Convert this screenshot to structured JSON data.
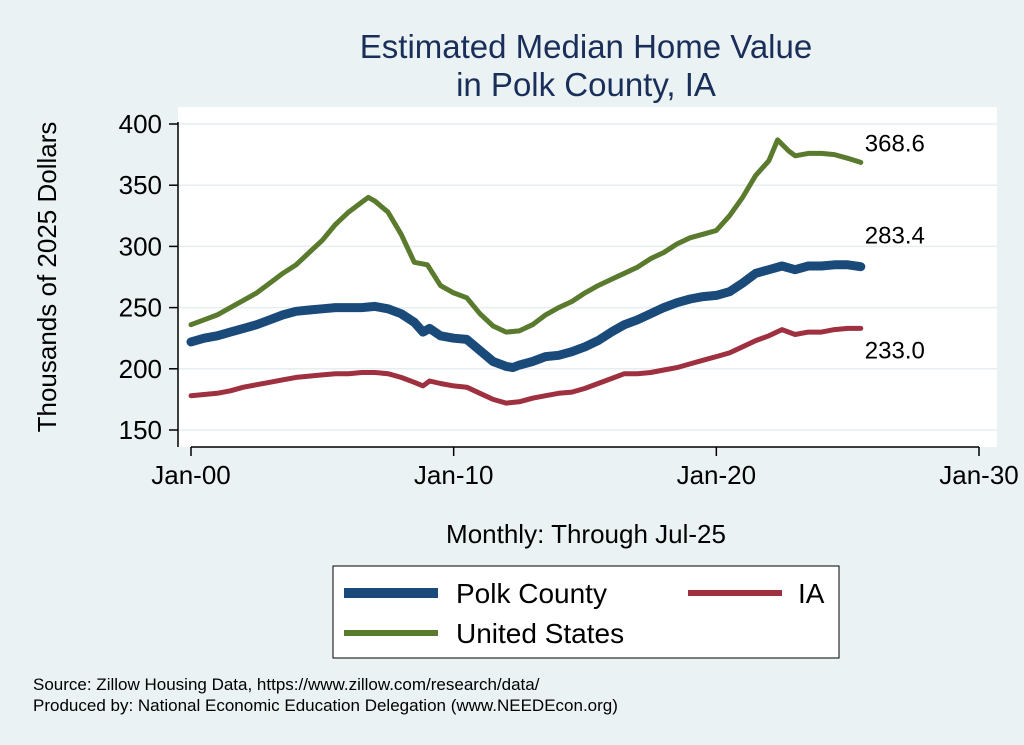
{
  "chart_data": {
    "type": "line",
    "title": [
      "Estimated Median Home Value",
      "in Polk County, IA"
    ],
    "ylabel": "Thousands of 2025 Dollars",
    "xlabel": "Monthly: Through Jul-25",
    "xlim": [
      2000.0,
      2030.0
    ],
    "ylim": [
      140,
      405
    ],
    "yticks": [
      150,
      200,
      250,
      300,
      350,
      400
    ],
    "xticks": [
      {
        "label": "Jan-00",
        "value": 2000.0
      },
      {
        "label": "Jan-10",
        "value": 2010.0
      },
      {
        "label": "Jan-20",
        "value": 2020.0
      },
      {
        "label": "Jan-30",
        "value": 2030.0
      }
    ],
    "grid": true,
    "legend_position": "bottom",
    "series": [
      {
        "name": "Polk County",
        "color": "#1a4a7a",
        "end_label": "283.4",
        "points": [
          [
            "2000-01",
            222
          ],
          [
            "2000-07",
            225
          ],
          [
            "2001-01",
            227
          ],
          [
            "2001-07",
            230
          ],
          [
            "2002-01",
            233
          ],
          [
            "2002-07",
            236
          ],
          [
            "2003-01",
            240
          ],
          [
            "2003-07",
            244
          ],
          [
            "2004-01",
            247
          ],
          [
            "2004-07",
            248
          ],
          [
            "2005-01",
            249
          ],
          [
            "2005-07",
            250
          ],
          [
            "2006-01",
            250
          ],
          [
            "2006-07",
            250
          ],
          [
            "2007-01",
            251
          ],
          [
            "2007-07",
            249
          ],
          [
            "2008-01",
            245
          ],
          [
            "2008-07",
            238
          ],
          [
            "2008-11",
            230
          ],
          [
            "2009-02",
            233
          ],
          [
            "2009-07",
            227
          ],
          [
            "2010-01",
            225
          ],
          [
            "2010-07",
            224
          ],
          [
            "2011-01",
            215
          ],
          [
            "2011-07",
            206
          ],
          [
            "2012-01",
            202
          ],
          [
            "2012-04",
            201
          ],
          [
            "2012-07",
            203
          ],
          [
            "2013-01",
            206
          ],
          [
            "2013-07",
            210
          ],
          [
            "2014-01",
            211
          ],
          [
            "2014-07",
            214
          ],
          [
            "2015-01",
            218
          ],
          [
            "2015-07",
            223
          ],
          [
            "2016-01",
            230
          ],
          [
            "2016-07",
            236
          ],
          [
            "2017-01",
            240
          ],
          [
            "2017-07",
            245
          ],
          [
            "2018-01",
            250
          ],
          [
            "2018-07",
            254
          ],
          [
            "2019-01",
            257
          ],
          [
            "2019-07",
            259
          ],
          [
            "2020-01",
            260
          ],
          [
            "2020-07",
            263
          ],
          [
            "2021-01",
            270
          ],
          [
            "2021-07",
            278
          ],
          [
            "2022-01",
            281
          ],
          [
            "2022-07",
            284
          ],
          [
            "2023-01",
            281
          ],
          [
            "2023-07",
            284
          ],
          [
            "2024-01",
            284
          ],
          [
            "2024-07",
            285
          ],
          [
            "2025-01",
            285
          ],
          [
            "2025-07",
            283.4
          ]
        ]
      },
      {
        "name": "IA",
        "color": "#9e3040",
        "end_label": "233.0",
        "points": [
          [
            "2000-01",
            178
          ],
          [
            "2000-07",
            179
          ],
          [
            "2001-01",
            180
          ],
          [
            "2001-07",
            182
          ],
          [
            "2002-01",
            185
          ],
          [
            "2002-07",
            187
          ],
          [
            "2003-01",
            189
          ],
          [
            "2003-07",
            191
          ],
          [
            "2004-01",
            193
          ],
          [
            "2004-07",
            194
          ],
          [
            "2005-01",
            195
          ],
          [
            "2005-07",
            196
          ],
          [
            "2006-01",
            196
          ],
          [
            "2006-07",
            197
          ],
          [
            "2007-01",
            197
          ],
          [
            "2007-07",
            196
          ],
          [
            "2008-01",
            193
          ],
          [
            "2008-07",
            189
          ],
          [
            "2008-11",
            186
          ],
          [
            "2009-02",
            190
          ],
          [
            "2009-07",
            188
          ],
          [
            "2010-01",
            186
          ],
          [
            "2010-07",
            185
          ],
          [
            "2011-01",
            180
          ],
          [
            "2011-07",
            175
          ],
          [
            "2012-01",
            172
          ],
          [
            "2012-07",
            173
          ],
          [
            "2013-01",
            176
          ],
          [
            "2013-07",
            178
          ],
          [
            "2014-01",
            180
          ],
          [
            "2014-07",
            181
          ],
          [
            "2015-01",
            184
          ],
          [
            "2015-07",
            188
          ],
          [
            "2016-01",
            192
          ],
          [
            "2016-07",
            196
          ],
          [
            "2017-01",
            196
          ],
          [
            "2017-07",
            197
          ],
          [
            "2018-01",
            199
          ],
          [
            "2018-07",
            201
          ],
          [
            "2019-01",
            204
          ],
          [
            "2019-07",
            207
          ],
          [
            "2020-01",
            210
          ],
          [
            "2020-07",
            213
          ],
          [
            "2021-01",
            218
          ],
          [
            "2021-07",
            223
          ],
          [
            "2022-01",
            227
          ],
          [
            "2022-07",
            232
          ],
          [
            "2023-01",
            228
          ],
          [
            "2023-07",
            230
          ],
          [
            "2024-01",
            230
          ],
          [
            "2024-07",
            232
          ],
          [
            "2025-01",
            233
          ],
          [
            "2025-07",
            233.0
          ]
        ]
      },
      {
        "name": "United States",
        "color": "#5a7a2e",
        "end_label": "368.6",
        "points": [
          [
            "2000-01",
            236
          ],
          [
            "2000-07",
            240
          ],
          [
            "2001-01",
            244
          ],
          [
            "2001-07",
            250
          ],
          [
            "2002-01",
            256
          ],
          [
            "2002-07",
            262
          ],
          [
            "2003-01",
            270
          ],
          [
            "2003-07",
            278
          ],
          [
            "2004-01",
            285
          ],
          [
            "2004-07",
            295
          ],
          [
            "2005-01",
            305
          ],
          [
            "2005-07",
            318
          ],
          [
            "2006-01",
            328
          ],
          [
            "2006-07",
            336
          ],
          [
            "2006-10",
            340
          ],
          [
            "2007-01",
            337
          ],
          [
            "2007-07",
            328
          ],
          [
            "2008-01",
            310
          ],
          [
            "2008-07",
            287
          ],
          [
            "2009-01",
            285
          ],
          [
            "2009-07",
            268
          ],
          [
            "2010-01",
            262
          ],
          [
            "2010-07",
            258
          ],
          [
            "2011-01",
            245
          ],
          [
            "2011-07",
            235
          ],
          [
            "2012-01",
            230
          ],
          [
            "2012-07",
            231
          ],
          [
            "2013-01",
            236
          ],
          [
            "2013-07",
            244
          ],
          [
            "2014-01",
            250
          ],
          [
            "2014-07",
            255
          ],
          [
            "2015-01",
            262
          ],
          [
            "2015-07",
            268
          ],
          [
            "2016-01",
            273
          ],
          [
            "2016-07",
            278
          ],
          [
            "2017-01",
            283
          ],
          [
            "2017-07",
            290
          ],
          [
            "2018-01",
            295
          ],
          [
            "2018-07",
            302
          ],
          [
            "2019-01",
            307
          ],
          [
            "2019-07",
            310
          ],
          [
            "2020-01",
            313
          ],
          [
            "2020-07",
            325
          ],
          [
            "2021-01",
            340
          ],
          [
            "2021-07",
            358
          ],
          [
            "2022-01",
            370
          ],
          [
            "2022-05",
            387
          ],
          [
            "2022-10",
            378
          ],
          [
            "2023-01",
            374
          ],
          [
            "2023-07",
            376
          ],
          [
            "2024-01",
            376
          ],
          [
            "2024-07",
            375
          ],
          [
            "2025-01",
            372
          ],
          [
            "2025-07",
            368.6
          ]
        ]
      }
    ],
    "legend": [
      {
        "name": "Polk County",
        "color": "#1a4a7a"
      },
      {
        "name": "IA",
        "color": "#9e3040"
      },
      {
        "name": "United States",
        "color": "#5a7a2e"
      }
    ]
  },
  "source_lines": [
    "Source: Zillow Housing Data, https://www.zillow.com/research/data/",
    "Produced by: National Economic Education Delegation (www.NEEDEcon.org)"
  ]
}
